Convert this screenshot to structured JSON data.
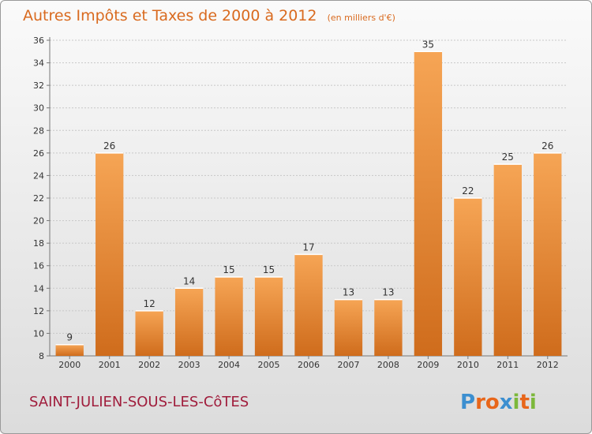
{
  "chart_data": {
    "type": "bar",
    "title": "Autres Impôts et Taxes de 2000 à 2012",
    "subtitle": "(en milliers d'€)",
    "categories": [
      "2000",
      "2001",
      "2002",
      "2003",
      "2004",
      "2005",
      "2006",
      "2007",
      "2008",
      "2009",
      "2010",
      "2011",
      "2012"
    ],
    "values": [
      9,
      26,
      12,
      14,
      15,
      15,
      17,
      13,
      13,
      35,
      22,
      25,
      26
    ],
    "ylim": [
      8,
      36
    ],
    "yticks": [
      8,
      10,
      12,
      14,
      16,
      18,
      20,
      22,
      24,
      26,
      28,
      30,
      32,
      34,
      36
    ],
    "grid": true,
    "colors": {
      "bar_light": "#f6a555",
      "bar_dark": "#cf6c1c",
      "title": "#d96a1f",
      "commune": "#a01d3c"
    }
  },
  "commune": "SAINT-JULIEN-SOUS-LES-CôTES",
  "logo": {
    "letters": [
      "P",
      "r",
      "o",
      "x",
      "i",
      "t",
      "i"
    ],
    "colors": [
      "#3c8fd0",
      "#e8661a",
      "#e8661a",
      "#3c8fd0",
      "#7cb83b",
      "#e8661a",
      "#7cb83b"
    ]
  }
}
